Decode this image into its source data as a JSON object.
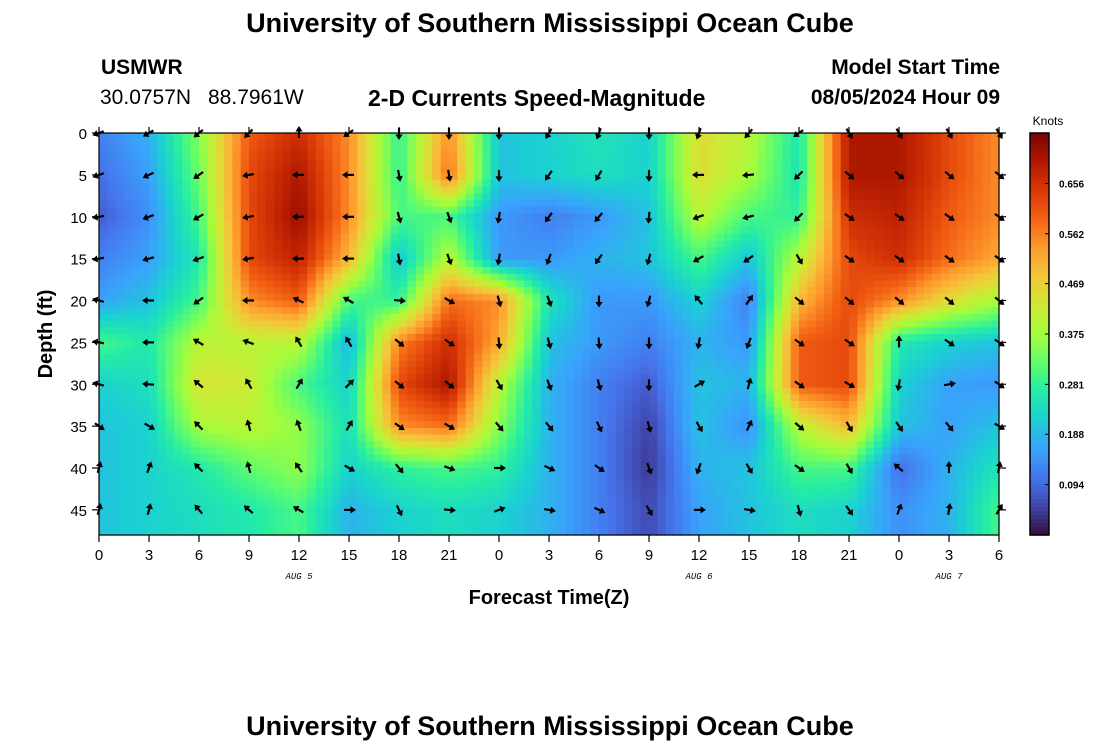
{
  "header": {
    "title": "University of Southern Mississippi Ocean Cube",
    "station": "USMWR",
    "lat": "30.0757N",
    "lon": "88.7961W",
    "product": "2-D Currents Speed-Magnitude",
    "model_start_label": "Model Start Time",
    "model_start_value": "08/05/2024 Hour 09"
  },
  "footer": {
    "title": "University of Southern Mississippi Ocean Cube"
  },
  "colors": {
    "ramp": [
      "#30123b",
      "#4145ab",
      "#4675ed",
      "#39a2fc",
      "#1bcfd4",
      "#24eca6",
      "#61fc6c",
      "#a4fc3b",
      "#d1e834",
      "#f3c63a",
      "#fe9b2d",
      "#f36315",
      "#d93806",
      "#b11901",
      "#7a0402"
    ],
    "arrow": "#000000",
    "frame": "#000000"
  },
  "chart_data": {
    "type": "heatmap",
    "subtype": "speed-magnitude with direction vectors",
    "title": "2-D Currents Speed-Magnitude",
    "xlabel": "Forecast Time(Z)",
    "ylabel": "Depth (ft)",
    "x_hours": [
      0,
      3,
      6,
      9,
      12,
      15,
      18,
      21,
      24,
      27,
      30,
      33,
      36,
      39,
      42,
      45,
      48,
      51,
      54
    ],
    "xticks": [
      "0",
      "3",
      "6",
      "9",
      "12",
      "15",
      "18",
      "21",
      "0",
      "3",
      "6",
      "9",
      "12",
      "15",
      "18",
      "21",
      "0",
      "3",
      "6"
    ],
    "date_labels": [
      {
        "hour": 12,
        "text": "AUG 5"
      },
      {
        "hour": 36,
        "text": "AUG 6"
      },
      {
        "hour": 51,
        "text": "AUG 7"
      }
    ],
    "ylim": [
      0,
      48
    ],
    "depths": [
      0,
      5,
      10,
      15,
      20,
      25,
      30,
      35,
      40,
      45
    ],
    "yticks": [
      "0",
      "5",
      "10",
      "15",
      "20",
      "25",
      "30",
      "35",
      "40",
      "45"
    ],
    "colorbar": {
      "label": "Knots",
      "min": 0.0,
      "max": 0.75,
      "ticks": [
        0.094,
        0.188,
        0.281,
        0.375,
        0.469,
        0.562,
        0.656
      ]
    },
    "speed_knots": [
      [
        0.12,
        0.18,
        0.35,
        0.6,
        0.66,
        0.55,
        0.28,
        0.55,
        0.2,
        0.22,
        0.25,
        0.22,
        0.45,
        0.4,
        0.25,
        0.7,
        0.7,
        0.62,
        0.55
      ],
      [
        0.1,
        0.16,
        0.33,
        0.62,
        0.7,
        0.55,
        0.28,
        0.58,
        0.2,
        0.22,
        0.24,
        0.22,
        0.45,
        0.38,
        0.25,
        0.7,
        0.7,
        0.62,
        0.55
      ],
      [
        0.08,
        0.14,
        0.3,
        0.62,
        0.72,
        0.55,
        0.3,
        0.3,
        0.15,
        0.12,
        0.15,
        0.2,
        0.4,
        0.3,
        0.28,
        0.66,
        0.68,
        0.6,
        0.55
      ],
      [
        0.12,
        0.16,
        0.26,
        0.62,
        0.68,
        0.5,
        0.2,
        0.4,
        0.15,
        0.15,
        0.18,
        0.2,
        0.3,
        0.2,
        0.4,
        0.62,
        0.66,
        0.58,
        0.52
      ],
      [
        0.16,
        0.2,
        0.3,
        0.55,
        0.6,
        0.3,
        0.28,
        0.58,
        0.55,
        0.25,
        0.15,
        0.15,
        0.22,
        0.12,
        0.5,
        0.62,
        0.55,
        0.45,
        0.38
      ],
      [
        0.3,
        0.26,
        0.4,
        0.4,
        0.4,
        0.18,
        0.56,
        0.66,
        0.52,
        0.2,
        0.15,
        0.12,
        0.18,
        0.15,
        0.6,
        0.62,
        0.26,
        0.22,
        0.2
      ],
      [
        0.22,
        0.24,
        0.44,
        0.42,
        0.3,
        0.22,
        0.62,
        0.7,
        0.4,
        0.18,
        0.12,
        0.08,
        0.2,
        0.18,
        0.6,
        0.62,
        0.22,
        0.16,
        0.15
      ],
      [
        0.2,
        0.22,
        0.38,
        0.4,
        0.36,
        0.24,
        0.55,
        0.58,
        0.35,
        0.18,
        0.12,
        0.05,
        0.2,
        0.14,
        0.4,
        0.5,
        0.2,
        0.16,
        0.2
      ],
      [
        0.2,
        0.22,
        0.26,
        0.32,
        0.36,
        0.22,
        0.28,
        0.3,
        0.28,
        0.18,
        0.12,
        0.04,
        0.18,
        0.2,
        0.3,
        0.3,
        0.1,
        0.18,
        0.25
      ],
      [
        0.2,
        0.22,
        0.24,
        0.26,
        0.3,
        0.18,
        0.22,
        0.24,
        0.22,
        0.18,
        0.12,
        0.06,
        0.16,
        0.2,
        0.24,
        0.22,
        0.14,
        0.18,
        0.3
      ]
    ],
    "direction_deg": [
      [
        250,
        240,
        230,
        225,
        0,
        235,
        180,
        180,
        180,
        210,
        200,
        180,
        200,
        220,
        235,
        150,
        150,
        150,
        150
      ],
      [
        250,
        245,
        235,
        260,
        270,
        270,
        170,
        170,
        180,
        215,
        210,
        180,
        270,
        265,
        225,
        130,
        130,
        130,
        130
      ],
      [
        260,
        250,
        240,
        260,
        270,
        270,
        165,
        160,
        190,
        215,
        220,
        185,
        250,
        255,
        225,
        125,
        125,
        125,
        125
      ],
      [
        260,
        255,
        250,
        260,
        270,
        270,
        170,
        160,
        190,
        200,
        215,
        195,
        240,
        235,
        150,
        125,
        125,
        125,
        125
      ],
      [
        285,
        270,
        235,
        270,
        295,
        300,
        95,
        120,
        165,
        160,
        180,
        195,
        320,
        35,
        130,
        130,
        130,
        130,
        130
      ],
      [
        280,
        270,
        300,
        290,
        330,
        330,
        130,
        125,
        175,
        165,
        175,
        180,
        190,
        200,
        125,
        125,
        0,
        125,
        125
      ],
      [
        285,
        275,
        310,
        330,
        30,
        45,
        130,
        130,
        150,
        160,
        165,
        180,
        60,
        15,
        125,
        120,
        190,
        80,
        125
      ],
      [
        125,
        120,
        315,
        345,
        340,
        30,
        125,
        120,
        140,
        140,
        155,
        165,
        150,
        25,
        130,
        150,
        145,
        140,
        120
      ],
      [
        15,
        20,
        315,
        345,
        325,
        120,
        140,
        110,
        90,
        115,
        125,
        160,
        200,
        150,
        125,
        150,
        310,
        0,
        10
      ],
      [
        15,
        15,
        320,
        310,
        300,
        90,
        155,
        95,
        70,
        100,
        115,
        150,
        90,
        100,
        165,
        145,
        20,
        10,
        30
      ]
    ]
  }
}
